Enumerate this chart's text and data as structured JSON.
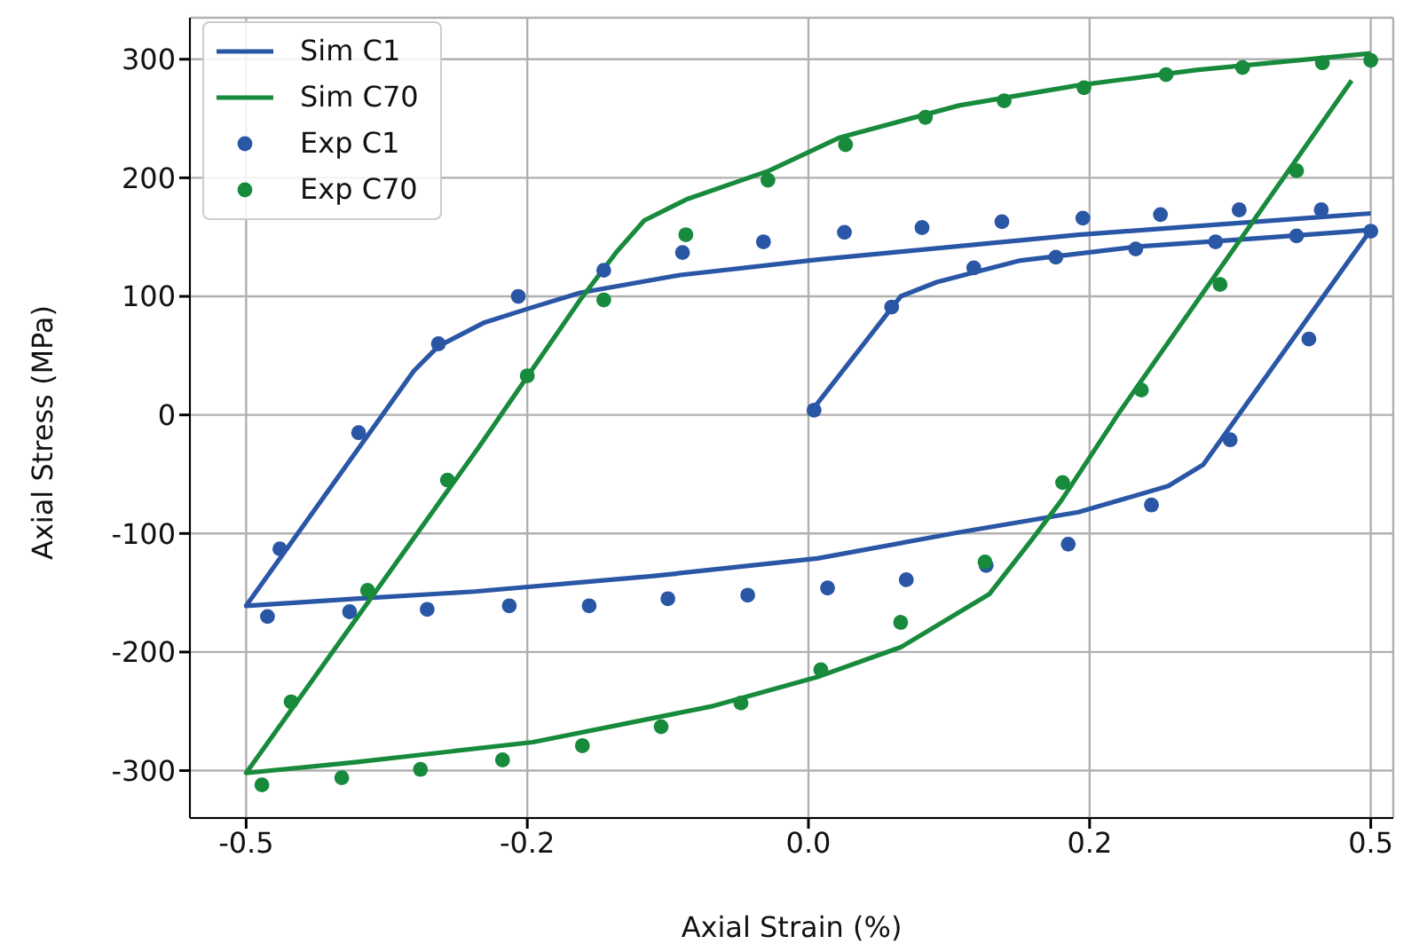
{
  "chart_data": {
    "type": "line",
    "xlabel": "Axial Strain (%)",
    "ylabel": "Axial Stress (MPa)",
    "xlim": [
      -0.55,
      0.52
    ],
    "ylim": [
      -340,
      335
    ],
    "xticks": [
      {
        "value": -0.5,
        "label": "-0.5"
      },
      {
        "value": -0.25,
        "label": "-0.2"
      },
      {
        "value": 0,
        "label": "0.0"
      },
      {
        "value": 0.25,
        "label": "0.2"
      },
      {
        "value": 0.5,
        "label": "0.5"
      }
    ],
    "yticks": [
      -300,
      -200,
      -100,
      0,
      100,
      200,
      300
    ],
    "grid": true,
    "legend": "top left",
    "line_style": "solid",
    "series": [
      {
        "name": "Sim C1",
        "type": "line",
        "marker": "none",
        "color": "#2a56a6",
        "x": [
          0,
          0.082,
          0.114,
          0.187,
          0.293,
          0.399,
          0.5,
          0.351,
          0.32,
          0.24,
          0.134,
          0.008,
          -0.139,
          -0.297,
          -0.403,
          -0.5,
          -0.351,
          -0.329,
          -0.288,
          -0.248,
          -0.203,
          -0.114,
          0.008,
          0.24,
          0.5
        ],
        "values": [
          0,
          100,
          112,
          130,
          142,
          149,
          156,
          -42,
          -60,
          -82,
          -99,
          -121,
          -136,
          -149,
          -155,
          -161,
          37,
          58,
          78,
          90,
          103,
          118,
          131,
          152,
          170
        ]
      },
      {
        "name": "Sim C70",
        "type": "line",
        "marker": "none",
        "color": "#178a3c",
        "x": [
          0.5,
          0.345,
          0.24,
          0.134,
          0.028,
          -0.035,
          -0.108,
          -0.146,
          -0.171,
          -0.203,
          -0.293,
          -0.5,
          -0.403,
          -0.245,
          -0.087,
          0.008,
          0.082,
          0.161,
          0.198,
          0.225,
          0.277,
          0.483
        ],
        "values": [
          305,
          291,
          278,
          261,
          234,
          206,
          182,
          164,
          137,
          97,
          -27,
          -302,
          -293,
          -276,
          -246,
          -221,
          -196,
          -151,
          -106,
          -72,
          3,
          282
        ]
      },
      {
        "name": "Exp C1",
        "type": "scatter",
        "marker": "circle",
        "color": "#2a56a6",
        "x": [
          0.005,
          0.074,
          0.147,
          0.22,
          0.291,
          0.362,
          0.434,
          0.5,
          0.445,
          0.375,
          0.305,
          0.231,
          0.158,
          0.087,
          0.017,
          -0.054,
          -0.125,
          -0.195,
          -0.266,
          -0.339,
          -0.408,
          -0.481,
          -0.47,
          -0.4,
          -0.329,
          -0.258,
          -0.182,
          -0.112,
          -0.04,
          0.032,
          0.101,
          0.172,
          0.244,
          0.313,
          0.383,
          0.456
        ],
        "values": [
          4,
          91,
          124,
          133,
          140,
          146,
          151,
          155,
          64,
          -21,
          -76,
          -109,
          -127,
          -139,
          -146,
          -152,
          -155,
          -161,
          -161,
          -164,
          -166,
          -170,
          -113,
          -15,
          60,
          100,
          122,
          137,
          146,
          154,
          158,
          163,
          166,
          169,
          173,
          173
        ]
      },
      {
        "name": "Exp C70",
        "type": "scatter",
        "marker": "circle",
        "color": "#178a3c",
        "x": [
          0.5,
          0.434,
          0.366,
          0.296,
          0.226,
          0.157,
          0.082,
          0.011,
          -0.06,
          -0.131,
          -0.201,
          -0.272,
          -0.345,
          -0.415,
          -0.486,
          -0.46,
          -0.392,
          -0.321,
          -0.25,
          -0.182,
          -0.109,
          -0.036,
          0.033,
          0.104,
          0.174,
          0.245,
          0.318,
          0.386,
          0.457
        ],
        "values": [
          299,
          206,
          110,
          21,
          -57,
          -124,
          -175,
          -215,
          -243,
          -263,
          -279,
          -291,
          -299,
          -306,
          -312,
          -242,
          -148,
          -55,
          33,
          97,
          152,
          198,
          228,
          251,
          265,
          276,
          287,
          293,
          297
        ]
      }
    ]
  }
}
